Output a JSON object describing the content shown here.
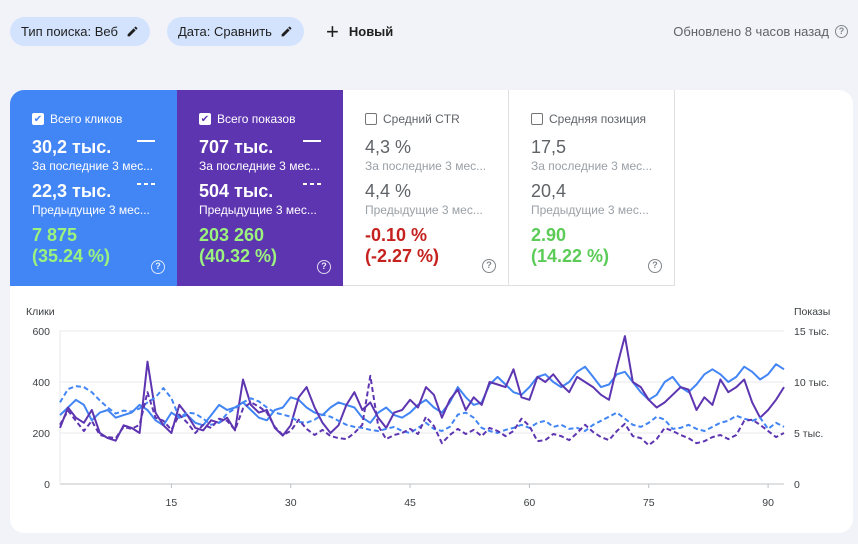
{
  "filters": {
    "search_type": "Тип поиска: Веб",
    "date": "Дата: Сравнить",
    "new_label": "Новый"
  },
  "updated_text": "Обновлено 8 часов назад",
  "metrics": [
    {
      "label": "Всего кликов",
      "checked": true,
      "current": "30,2 тыс.",
      "current_label": "За последние 3 мес...",
      "previous": "22,3 тыс.",
      "previous_label": "Предыдущие 3 мес...",
      "diff": "7 875",
      "diff_pct": "(35.24 %)"
    },
    {
      "label": "Всего показов",
      "checked": true,
      "current": "707 тыс.",
      "current_label": "За последние 3 мес...",
      "previous": "504 тыс.",
      "previous_label": "Предыдущие 3 мес...",
      "diff": "203 260",
      "diff_pct": "(40.32 %)"
    },
    {
      "label": "Средний CTR",
      "checked": false,
      "current": "4,3 %",
      "current_label": "За последние 3 мес...",
      "previous": "4,4 %",
      "previous_label": "Предыдущие 3 мес...",
      "diff": "-0.10 %",
      "diff_pct": "(-2.27 %)"
    },
    {
      "label": "Средняя позиция",
      "checked": false,
      "current": "17,5",
      "current_label": "За последние 3 мес...",
      "previous": "20,4",
      "previous_label": "Предыдущие 3 мес...",
      "diff": "2.90",
      "diff_pct": "(14.22 %)"
    }
  ],
  "colors": {
    "clicks": "#4285f4",
    "impressions": "#5e35b1",
    "chip_bg": "#d3e3fd",
    "negative": "#c5221f",
    "positive": "#5ccb57"
  },
  "chart_data": {
    "type": "line",
    "ylabel_left": "Клики",
    "ylabel_right": "Показы",
    "ylim_left": [
      0,
      600
    ],
    "ylim_right": [
      0,
      15000
    ],
    "yticks_left": [
      "0",
      "200",
      "400",
      "600"
    ],
    "yticks_right": [
      "0",
      "5 тыс.",
      "10 тыс.",
      "15 тыс."
    ],
    "xticks": [
      "15",
      "30",
      "45",
      "60",
      "75",
      "90"
    ],
    "xlim": [
      1,
      92
    ],
    "grid": true,
    "series": [
      {
        "axis": "left",
        "style": "solid",
        "color": "#4285f4",
        "values": [
          270,
          300,
          330,
          310,
          250,
          280,
          290,
          260,
          270,
          280,
          310,
          290,
          250,
          230,
          280,
          260,
          270,
          240,
          230,
          270,
          310,
          290,
          300,
          320,
          290,
          260,
          250,
          290,
          300,
          340,
          330,
          300,
          280,
          270,
          300,
          320,
          310,
          300,
          260,
          240,
          280,
          300,
          270,
          260,
          280,
          310,
          330,
          300,
          280,
          320,
          380,
          340,
          310,
          320,
          390,
          420,
          390,
          360,
          350,
          380,
          420,
          430,
          400,
          380,
          400,
          440,
          460,
          420,
          380,
          390,
          430,
          440,
          400,
          360,
          330,
          350,
          400,
          420,
          380,
          360,
          390,
          430,
          450,
          430,
          400,
          420,
          460,
          440,
          410,
          430,
          470,
          450
        ]
      },
      {
        "axis": "left",
        "style": "solid",
        "color": "#5e35b1",
        "values": [
          220,
          300,
          260,
          240,
          290,
          200,
          180,
          170,
          230,
          220,
          200,
          480,
          280,
          230,
          200,
          310,
          270,
          220,
          210,
          250,
          240,
          260,
          210,
          410,
          310,
          280,
          290,
          220,
          190,
          230,
          340,
          380,
          300,
          240,
          200,
          230,
          310,
          360,
          290,
          320,
          260,
          220,
          280,
          290,
          330,
          300,
          380,
          350,
          260,
          330,
          370,
          290,
          340,
          310,
          400,
          390,
          380,
          450,
          340,
          330,
          420,
          400,
          430,
          390,
          360,
          420,
          400,
          380,
          350,
          330,
          460,
          580,
          400,
          380,
          330,
          300,
          320,
          350,
          380,
          370,
          290,
          340,
          310,
          410,
          360,
          380,
          410,
          320,
          260,
          290,
          330,
          380
        ]
      },
      {
        "axis": "right",
        "style": "dashed",
        "color": "#4285f4",
        "values": [
          8000,
          9300,
          9600,
          9500,
          9000,
          8200,
          7500,
          6900,
          7200,
          7100,
          7400,
          8000,
          8500,
          9400,
          8400,
          6500,
          7000,
          6900,
          6400,
          5800,
          6000,
          6900,
          7400,
          8000,
          8400,
          8100,
          7500,
          7000,
          6800,
          6600,
          6100,
          6000,
          6300,
          6800,
          6600,
          6200,
          5800,
          5600,
          5500,
          5300,
          5200,
          5400,
          5600,
          5200,
          5000,
          5500,
          6000,
          5400,
          5200,
          5600,
          6800,
          7000,
          6500,
          5500,
          5200,
          5000,
          5300,
          5500,
          5800,
          5500,
          6000,
          6200,
          5600,
          5800,
          5400,
          5500,
          5200,
          5800,
          6200,
          6600,
          7000,
          6400,
          5800,
          5600,
          6000,
          6600,
          6300,
          5400,
          5500,
          5800,
          5400,
          5200,
          5600,
          6000,
          6200,
          6700,
          6400,
          6200,
          6500,
          5400,
          6000,
          5600
        ]
      },
      {
        "axis": "right",
        "style": "dashed",
        "color": "#5e35b1",
        "values": [
          5800,
          7200,
          6200,
          5200,
          6200,
          4800,
          4600,
          4500,
          5600,
          5400,
          5800,
          9000,
          6500,
          6200,
          5300,
          6800,
          6000,
          5000,
          5800,
          5500,
          6400,
          6200,
          5300,
          7400,
          8000,
          7600,
          7000,
          5600,
          4800,
          5200,
          6300,
          5400,
          4800,
          5300,
          4700,
          4500,
          4400,
          5000,
          5800,
          10600,
          5700,
          4400,
          4800,
          5000,
          5400,
          4900,
          6600,
          5700,
          4000,
          4800,
          5400,
          4900,
          5300,
          4700,
          5500,
          5200,
          4700,
          5200,
          6400,
          5700,
          4200,
          4300,
          4900,
          4700,
          4300,
          5000,
          5800,
          5100,
          4600,
          4300,
          5200,
          5900,
          4700,
          4500,
          3800,
          4400,
          5500,
          5200,
          4800,
          4500,
          4000,
          4200,
          4600,
          4800,
          4400,
          4800,
          6200,
          6300,
          5800,
          5200,
          4600,
          5000
        ]
      }
    ]
  }
}
